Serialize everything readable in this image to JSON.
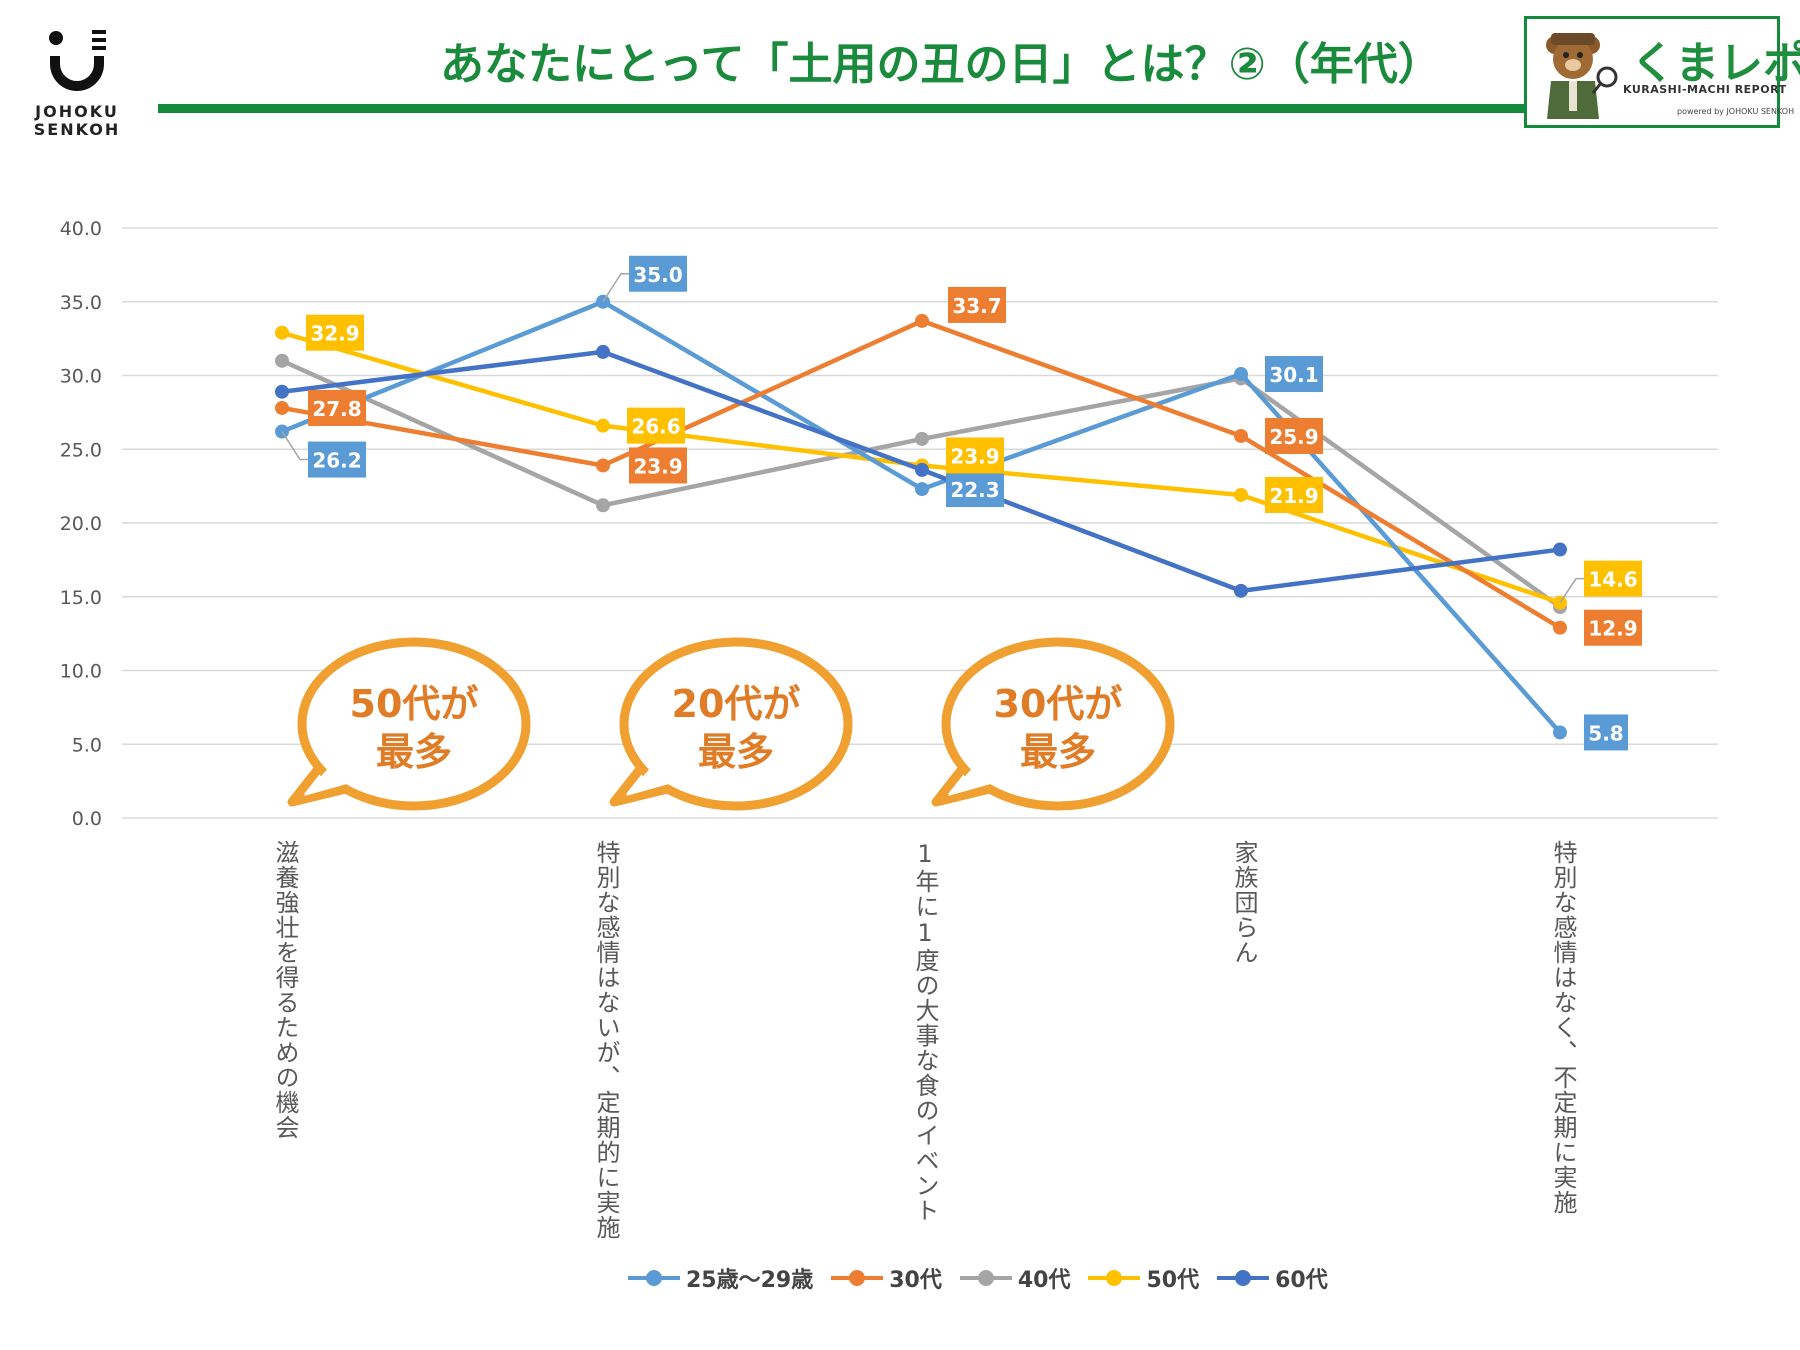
{
  "header": {
    "logo_line1": "JOHOKU",
    "logo_line2": "SENKOH",
    "title": "あなたにとって「土用の丑の日」とは？②（年代）"
  },
  "badge": {
    "name": "くまレポ",
    "subtitle": "KURASHI-MACHI REPORT",
    "powered": "powered by JOHOKU SENKOH"
  },
  "callouts": [
    {
      "line1": "50代が",
      "line2": "最多"
    },
    {
      "line1": "20代が",
      "line2": "最多"
    },
    {
      "line1": "30代が",
      "line2": "最多"
    }
  ],
  "colors": {
    "series_25_29": "#5b9bd5",
    "series_30s": "#ed7d31",
    "series_40s": "#a5a5a5",
    "series_50s": "#ffc000",
    "series_60s": "#4472c4",
    "callout": "#f0a030",
    "brand_green": "#138a3c"
  },
  "chart_data": {
    "type": "line",
    "title": "あなたにとって「土用の丑の日」とは？②（年代）",
    "xlabel": "",
    "ylabel": "",
    "ylim": [
      0,
      40
    ],
    "yticks": [
      "0.0",
      "5.0",
      "10.0",
      "15.0",
      "20.0",
      "25.0",
      "30.0",
      "35.0",
      "40.0"
    ],
    "grid": true,
    "legend_position": "bottom",
    "categories": [
      "滋養強壮を得るための機会",
      "特別な感情はないが、定期的に実施",
      "1年に1度の大事な食のイベント",
      "家族団らん",
      "特別な感情はなく、不定期に実施"
    ],
    "series": [
      {
        "name": "25歳〜29歳",
        "values": [
          26.2,
          35.0,
          22.3,
          30.1,
          5.8
        ],
        "labels": [
          "26.2",
          "35.0",
          "22.3",
          "30.1",
          "5.8"
        ]
      },
      {
        "name": "30代",
        "values": [
          27.8,
          23.9,
          33.7,
          25.9,
          12.9
        ],
        "labels": [
          "27.8",
          "23.9",
          "33.7",
          "25.9",
          "12.9"
        ]
      },
      {
        "name": "40代",
        "values": [
          31.0,
          21.2,
          25.7,
          29.8,
          14.3
        ],
        "labels": [
          null,
          null,
          null,
          null,
          null
        ]
      },
      {
        "name": "50代",
        "values": [
          32.9,
          26.6,
          23.9,
          21.9,
          14.6
        ],
        "labels": [
          "32.9",
          "26.6",
          "23.9",
          "21.9",
          "14.6"
        ]
      },
      {
        "name": "60代",
        "values": [
          28.9,
          31.6,
          23.6,
          15.4,
          18.2
        ],
        "labels": [
          null,
          null,
          null,
          null,
          null
        ]
      }
    ]
  }
}
